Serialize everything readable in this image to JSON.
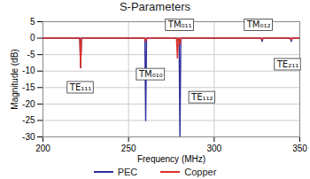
{
  "chart_data": {
    "type": "line",
    "title": "S-Parameters",
    "x_label": "Frequency (MHz)",
    "y_label": "Magnitude (dB)",
    "x": [
      200,
      221.5,
      222,
      222.5,
      259.5,
      260,
      260.5,
      278,
      278.5,
      279,
      279.5,
      280,
      280.5,
      327.5,
      328,
      328.5,
      344.5,
      345,
      345.5,
      350
    ],
    "series": [
      {
        "name": "PEC",
        "color": "#2e2e9a",
        "values": [
          0,
          0,
          -9,
          0,
          0,
          -25,
          0,
          0,
          -1,
          0,
          0,
          -30,
          0,
          0,
          -1,
          0,
          0,
          -1,
          0,
          0
        ]
      },
      {
        "name": "Copper",
        "color": "#e03027",
        "values": [
          0,
          0,
          -9,
          0,
          0,
          -1,
          0,
          0,
          -6,
          0,
          0,
          -2,
          0,
          0,
          -0.5,
          0,
          0,
          -0.5,
          0,
          0
        ]
      }
    ],
    "annotations": [
      {
        "text": "TE₁₁₁",
        "x": 222,
        "y": -15
      },
      {
        "text": "TM₀₁₀",
        "x": 263,
        "y": -11
      },
      {
        "text": "TM₀₁₁",
        "x": 280,
        "y": 4
      },
      {
        "text": "TE₁₁₂",
        "x": 293,
        "y": -18
      },
      {
        "text": "TM₀₁₂",
        "x": 326,
        "y": 4
      },
      {
        "text": "TE₂₁₁",
        "x": 343,
        "y": -8
      }
    ],
    "xlim": [
      200,
      350
    ],
    "xticks": [
      200,
      250,
      300,
      350
    ],
    "ylim": [
      -30,
      5
    ],
    "yticks": [
      5,
      0,
      -5,
      -10,
      -15,
      -20,
      -25,
      -30
    ],
    "grid": true,
    "legend": "bottom"
  }
}
